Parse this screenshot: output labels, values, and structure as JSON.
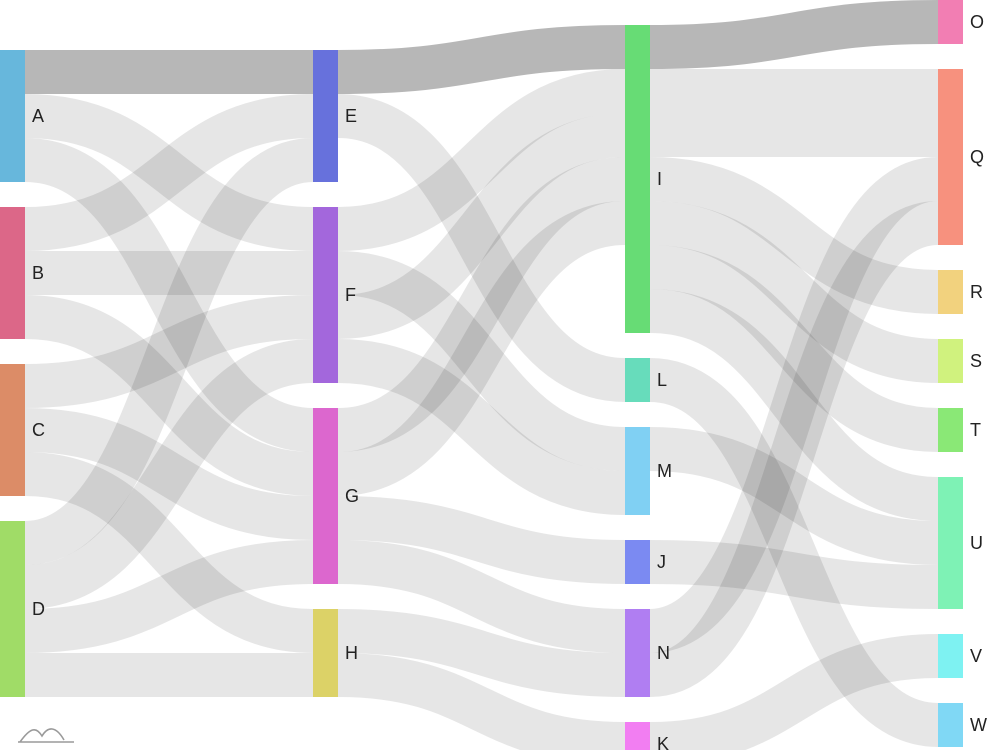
{
  "chart_data": {
    "type": "sankey",
    "title": "",
    "nodes": [
      {
        "id": "A",
        "label": "A",
        "color": "#67b7dc"
      },
      {
        "id": "B",
        "label": "B",
        "color": "#dc6788"
      },
      {
        "id": "C",
        "label": "C",
        "color": "#dc8c67"
      },
      {
        "id": "D",
        "label": "D",
        "color": "#a0dc67"
      },
      {
        "id": "E",
        "label": "E",
        "color": "#6771dc"
      },
      {
        "id": "F",
        "label": "F",
        "color": "#a367dc"
      },
      {
        "id": "G",
        "label": "G",
        "color": "#dc67ce"
      },
      {
        "id": "H",
        "label": "H",
        "color": "#dcd267"
      },
      {
        "id": "I",
        "label": "I",
        "color": "#67dc75"
      },
      {
        "id": "L",
        "label": "L",
        "color": "#67dcbb"
      },
      {
        "id": "M",
        "label": "M",
        "color": "#80d0f3"
      },
      {
        "id": "J",
        "label": "J",
        "color": "#7b8af2"
      },
      {
        "id": "N",
        "label": "N",
        "color": "#b07ef2"
      },
      {
        "id": "K",
        "label": "K",
        "color": "#f27ef2"
      },
      {
        "id": "O",
        "label": "O",
        "color": "#f27eb3"
      },
      {
        "id": "Q",
        "label": "Q",
        "color": "#f7917e"
      },
      {
        "id": "R",
        "label": "R",
        "color": "#f2d27e"
      },
      {
        "id": "S",
        "label": "S",
        "color": "#d0f27e"
      },
      {
        "id": "T",
        "label": "T",
        "color": "#8ae876"
      },
      {
        "id": "U",
        "label": "U",
        "color": "#7ef2b5"
      },
      {
        "id": "V",
        "label": "V",
        "color": "#7ef2f2"
      },
      {
        "id": "W",
        "label": "W",
        "color": "#80d8f5"
      }
    ],
    "links": [
      {
        "from": "A",
        "to": "E",
        "value": 1,
        "highlight": true
      },
      {
        "from": "A",
        "to": "F",
        "value": 1
      },
      {
        "from": "A",
        "to": "G",
        "value": 1
      },
      {
        "from": "B",
        "to": "E",
        "value": 1
      },
      {
        "from": "B",
        "to": "F",
        "value": 1
      },
      {
        "from": "B",
        "to": "G",
        "value": 1
      },
      {
        "from": "C",
        "to": "F",
        "value": 1
      },
      {
        "from": "C",
        "to": "G",
        "value": 1
      },
      {
        "from": "C",
        "to": "H",
        "value": 1
      },
      {
        "from": "D",
        "to": "E",
        "value": 1
      },
      {
        "from": "D",
        "to": "F",
        "value": 1
      },
      {
        "from": "D",
        "to": "G",
        "value": 1
      },
      {
        "from": "D",
        "to": "H",
        "value": 1
      },
      {
        "from": "E",
        "to": "I",
        "value": 1,
        "highlight": true
      },
      {
        "from": "E",
        "to": "L",
        "value": 1
      },
      {
        "from": "F",
        "to": "I",
        "value": 1
      },
      {
        "from": "F",
        "to": "M",
        "value": 1
      },
      {
        "from": "F",
        "to": "I",
        "value": 1
      },
      {
        "from": "F",
        "to": "M",
        "value": 1
      },
      {
        "from": "G",
        "to": "I",
        "value": 1
      },
      {
        "from": "G",
        "to": "I",
        "value": 1
      },
      {
        "from": "G",
        "to": "J",
        "value": 1
      },
      {
        "from": "G",
        "to": "N",
        "value": 1
      },
      {
        "from": "H",
        "to": "N",
        "value": 1
      },
      {
        "from": "H",
        "to": "K",
        "value": 1
      },
      {
        "from": "I",
        "to": "O",
        "value": 1,
        "highlight": true
      },
      {
        "from": "I",
        "to": "Q",
        "value": 2
      },
      {
        "from": "I",
        "to": "R",
        "value": 1
      },
      {
        "from": "I",
        "to": "S",
        "value": 1
      },
      {
        "from": "I",
        "to": "T",
        "value": 1
      },
      {
        "from": "I",
        "to": "U",
        "value": 1
      },
      {
        "from": "L",
        "to": "W",
        "value": 1
      },
      {
        "from": "M",
        "to": "U",
        "value": 1
      },
      {
        "from": "J",
        "to": "U",
        "value": 1
      },
      {
        "from": "N",
        "to": "Q",
        "value": 1
      },
      {
        "from": "N",
        "to": "Q",
        "value": 1
      },
      {
        "from": "K",
        "to": "V",
        "value": 1
      }
    ],
    "link_colors": {
      "default": "#e2e2e2",
      "highlight": "#aaaaaa"
    }
  }
}
